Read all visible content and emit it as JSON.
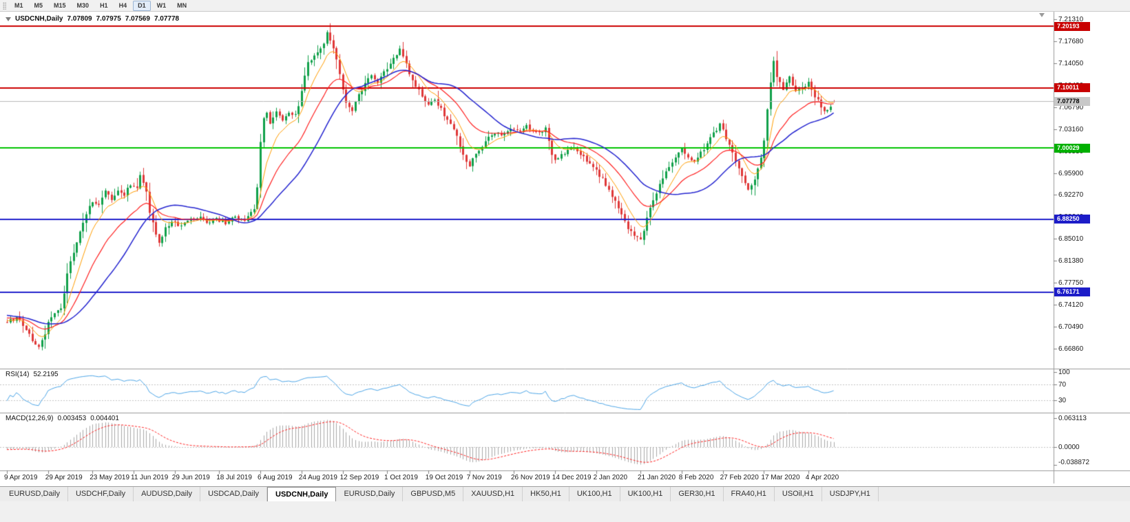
{
  "toolbar": {
    "timeframes": [
      "M1",
      "M5",
      "M15",
      "M30",
      "H1",
      "H4",
      "D1",
      "W1",
      "MN"
    ],
    "active_timeframe": "D1"
  },
  "chart": {
    "header": {
      "symbol": "USDCNH,Daily",
      "open": "7.07809",
      "high": "7.07975",
      "low": "7.07569",
      "close": "7.07778"
    }
  },
  "price_axis": {
    "ticks": [
      "7.21310",
      "7.17680",
      "7.14050",
      "7.10420",
      "7.06790",
      "7.03160",
      "6.99530",
      "6.95900",
      "6.92270",
      "6.88640",
      "6.85010",
      "6.81380",
      "6.77750",
      "6.74120",
      "6.70490",
      "6.66860"
    ],
    "markers": [
      {
        "kind": "resistance-1",
        "label": "7.20193",
        "bg": "#c80000",
        "fg": "#ffffff"
      },
      {
        "kind": "resistance-2",
        "label": "7.10011",
        "bg": "#c80000",
        "fg": "#ffffff"
      },
      {
        "kind": "current-price",
        "label": "7.07778",
        "bg": "#c8c8c8",
        "fg": "#000000"
      },
      {
        "kind": "psych-level",
        "label": "7.00029",
        "bg": "#00b000",
        "fg": "#ffffff"
      },
      {
        "kind": "support-1",
        "label": "6.88250",
        "bg": "#1c1cc8",
        "fg": "#ffffff"
      },
      {
        "kind": "support-2",
        "label": "6.76171",
        "bg": "#1c1cc8",
        "fg": "#ffffff"
      }
    ]
  },
  "time_axis": {
    "labels": [
      "9 Apr 2019",
      "29 Apr 2019",
      "23 May 2019",
      "11 Jun 2019",
      "29 Jun 2019",
      "18 Jul 2019",
      "6 Aug 2019",
      "24 Aug 2019",
      "12 Sep 2019",
      "1 Oct 2019",
      "19 Oct 2019",
      "7 Nov 2019",
      "26 Nov 2019",
      "14 Dec 2019",
      "2 Jan 2020",
      "21 Jan 2020",
      "8 Feb 2020",
      "27 Feb 2020",
      "17 Mar 2020",
      "4 Apr 2020"
    ]
  },
  "rsi_panel": {
    "label": "RSI(14)",
    "value": "52.2195",
    "scale_labels": [
      "100",
      "70",
      "30"
    ]
  },
  "macd_panel": {
    "label": "MACD(12,26,9)",
    "value": "0.003453",
    "signal_value": "0.004401",
    "scale_labels": [
      "0.063113",
      "0.0000",
      "-0.038872"
    ]
  },
  "tab_bar": {
    "tabs": [
      "EURUSD,Daily",
      "USDCHF,Daily",
      "AUDUSD,Daily",
      "USDCAD,Daily",
      "USDCNH,Daily",
      "EURUSD,Daily",
      "GBPUSD,M5",
      "XAUUSD,H1",
      "HK50,H1",
      "UK100,H1",
      "UK100,H1",
      "GER30,H1",
      "FRA40,H1",
      "USOil,H1",
      "USDJPY,H1"
    ],
    "active_index": 4
  },
  "chart_data": {
    "type": "candlestick",
    "title": "USDCNH,Daily",
    "symbol": "USDCNH",
    "timeframe": "Daily",
    "ylim": [
      6.635,
      7.225
    ],
    "candle_count": 262,
    "last_candle": {
      "open": 7.07809,
      "high": 7.07975,
      "low": 7.07569,
      "close": 7.07778
    },
    "candle_up_color": "#10a04a",
    "candle_down_color": "#df3838",
    "horizontal_lines": [
      {
        "price": 7.20193,
        "color": "#cc0000",
        "width": 2
      },
      {
        "price": 7.10011,
        "color": "#cc0000",
        "width": 2
      },
      {
        "price": 7.00029,
        "color": "#00c400",
        "width": 2
      },
      {
        "price": 6.8825,
        "color": "#2020cc",
        "width": 2
      },
      {
        "price": 6.76171,
        "color": "#2020cc",
        "width": 2
      }
    ],
    "bid_line": {
      "price": 7.07778,
      "color": "#b9b9b9"
    },
    "moving_averages": [
      {
        "period": 8,
        "method": "ema",
        "color": "#ff9d00",
        "width": 1
      },
      {
        "period": 20,
        "method": "ema",
        "color": "#ff2020",
        "width": 1.2
      },
      {
        "period": 30,
        "method": "sma",
        "color": "#2424d0",
        "width": 1.5
      }
    ],
    "rsi": {
      "period": 14,
      "current": 52.2195,
      "color": "#4da6e8",
      "levels": [
        70,
        30
      ],
      "range": [
        0,
        100
      ]
    },
    "macd": {
      "fast": 12,
      "slow": 26,
      "signal": 9,
      "current": 0.003453,
      "current_signal": 0.004401,
      "axis_max": 0.063113,
      "axis_min": -0.038872,
      "hist_color": "#a8a8a8",
      "signal_color": "#ff2020"
    },
    "close_anchors": [
      [
        0,
        6.712
      ],
      [
        3,
        6.719
      ],
      [
        5,
        6.708
      ],
      [
        8,
        6.682
      ],
      [
        10,
        6.67
      ],
      [
        12,
        6.692
      ],
      [
        13,
        6.712
      ],
      [
        15,
        6.728
      ],
      [
        17,
        6.736
      ],
      [
        18,
        6.758
      ],
      [
        19,
        6.79
      ],
      [
        20,
        6.812
      ],
      [
        22,
        6.845
      ],
      [
        24,
        6.878
      ],
      [
        26,
        6.902
      ],
      [
        27,
        6.912
      ],
      [
        29,
        6.905
      ],
      [
        31,
        6.928
      ],
      [
        33,
        6.916
      ],
      [
        35,
        6.932
      ],
      [
        37,
        6.924
      ],
      [
        39,
        6.94
      ],
      [
        41,
        6.936
      ],
      [
        42,
        6.956
      ],
      [
        44,
        6.93
      ],
      [
        45,
        6.895
      ],
      [
        47,
        6.86
      ],
      [
        48,
        6.845
      ],
      [
        50,
        6.866
      ],
      [
        52,
        6.88
      ],
      [
        54,
        6.872
      ],
      [
        57,
        6.88
      ],
      [
        60,
        6.886
      ],
      [
        63,
        6.878
      ],
      [
        66,
        6.882
      ],
      [
        69,
        6.877
      ],
      [
        72,
        6.885
      ],
      [
        75,
        6.882
      ],
      [
        77,
        6.892
      ],
      [
        78,
        6.902
      ],
      [
        79,
        6.938
      ],
      [
        80,
        7.008
      ],
      [
        81,
        7.048
      ],
      [
        82,
        7.058
      ],
      [
        83,
        7.04
      ],
      [
        85,
        7.062
      ],
      [
        87,
        7.048
      ],
      [
        89,
        7.06
      ],
      [
        91,
        7.054
      ],
      [
        92,
        7.068
      ],
      [
        93,
        7.098
      ],
      [
        95,
        7.14
      ],
      [
        97,
        7.152
      ],
      [
        99,
        7.165
      ],
      [
        100,
        7.176
      ],
      [
        101,
        7.19
      ],
      [
        102,
        7.178
      ],
      [
        104,
        7.148
      ],
      [
        105,
        7.125
      ],
      [
        106,
        7.095
      ],
      [
        107,
        7.075
      ],
      [
        109,
        7.062
      ],
      [
        111,
        7.088
      ],
      [
        113,
        7.108
      ],
      [
        115,
        7.12
      ],
      [
        117,
        7.11
      ],
      [
        119,
        7.126
      ],
      [
        121,
        7.14
      ],
      [
        123,
        7.155
      ],
      [
        124,
        7.162
      ],
      [
        126,
        7.138
      ],
      [
        128,
        7.11
      ],
      [
        130,
        7.096
      ],
      [
        132,
        7.08
      ],
      [
        133,
        7.07
      ],
      [
        135,
        7.082
      ],
      [
        137,
        7.065
      ],
      [
        139,
        7.046
      ],
      [
        141,
        7.03
      ],
      [
        143,
        7.005
      ],
      [
        145,
        6.98
      ],
      [
        146,
        6.972
      ],
      [
        148,
        6.99
      ],
      [
        150,
        7.004
      ],
      [
        152,
        7.016
      ],
      [
        154,
        7.026
      ],
      [
        156,
        7.02
      ],
      [
        158,
        7.03
      ],
      [
        160,
        7.034
      ],
      [
        162,
        7.027
      ],
      [
        164,
        7.037
      ],
      [
        166,
        7.03
      ],
      [
        168,
        7.026
      ],
      [
        170,
        7.034
      ],
      [
        171,
        7.015
      ],
      [
        172,
        6.992
      ],
      [
        173,
        6.98
      ],
      [
        175,
        6.988
      ],
      [
        177,
        6.996
      ],
      [
        179,
        7.0
      ],
      [
        181,
        6.99
      ],
      [
        183,
        6.978
      ],
      [
        185,
        6.968
      ],
      [
        186,
        6.962
      ],
      [
        188,
        6.948
      ],
      [
        190,
        6.93
      ],
      [
        192,
        6.91
      ],
      [
        194,
        6.888
      ],
      [
        196,
        6.868
      ],
      [
        198,
        6.852
      ],
      [
        200,
        6.848
      ],
      [
        201,
        6.862
      ],
      [
        202,
        6.885
      ],
      [
        204,
        6.915
      ],
      [
        206,
        6.94
      ],
      [
        208,
        6.96
      ],
      [
        210,
        6.976
      ],
      [
        212,
        6.99
      ],
      [
        213,
        6.998
      ],
      [
        215,
        6.986
      ],
      [
        217,
        6.976
      ],
      [
        219,
        6.992
      ],
      [
        221,
        7.008
      ],
      [
        223,
        7.026
      ],
      [
        225,
        7.038
      ],
      [
        226,
        7.03
      ],
      [
        228,
        7.005
      ],
      [
        230,
        6.978
      ],
      [
        232,
        6.952
      ],
      [
        234,
        6.932
      ],
      [
        236,
        6.95
      ],
      [
        238,
        6.985
      ],
      [
        239,
        7.015
      ],
      [
        240,
        7.062
      ],
      [
        241,
        7.108
      ],
      [
        242,
        7.145
      ],
      [
        243,
        7.12
      ],
      [
        245,
        7.098
      ],
      [
        247,
        7.116
      ],
      [
        249,
        7.092
      ],
      [
        251,
        7.1
      ],
      [
        253,
        7.11
      ],
      [
        254,
        7.095
      ],
      [
        256,
        7.078
      ],
      [
        258,
        7.06
      ],
      [
        260,
        7.068
      ],
      [
        261,
        7.078
      ]
    ]
  }
}
